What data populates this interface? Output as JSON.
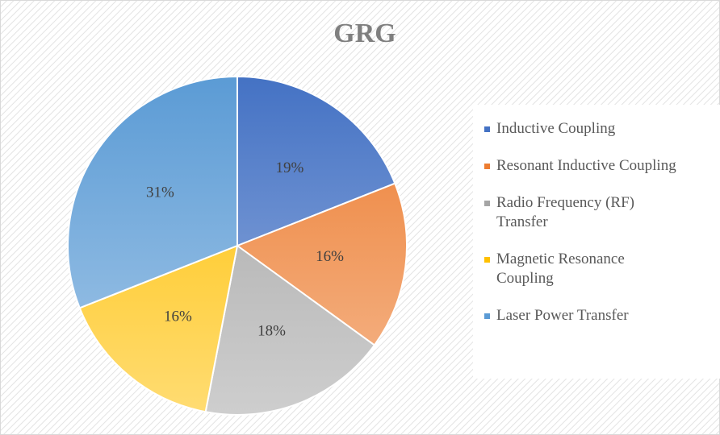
{
  "chart_data": {
    "type": "pie",
    "title": "GRG",
    "categories": [
      "Inductive Coupling",
      "Resonant Inductive Coupling",
      "Radio Frequency (RF) Transfer",
      "Magnetic Resonance Coupling",
      "Laser Power Transfer"
    ],
    "values": [
      19,
      16,
      18,
      16,
      31
    ],
    "value_labels": [
      "19%",
      "16%",
      "18%",
      "16%",
      "31%"
    ],
    "colors": [
      "#4472c4",
      "#ed7d31",
      "#a5a5a5",
      "#ffc000",
      "#5b9bd5"
    ],
    "legend": "right"
  }
}
